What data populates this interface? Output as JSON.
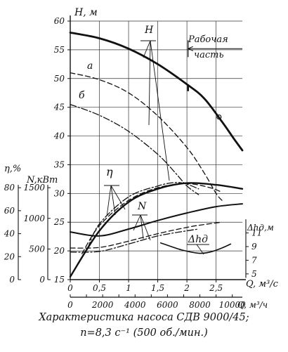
{
  "chart_data": {
    "type": "line",
    "caption_line1": "Характеристика насоса СДВ 9000/45;",
    "caption_line2": "n=8,3 с⁻¹ (500 об./мин.)",
    "x_axis": {
      "label": "Q, м³/с",
      "range": [
        0,
        2.95
      ],
      "ticks": [
        "0",
        "0,5",
        "1",
        "1,5",
        "2",
        "2,5"
      ]
    },
    "x2_axis": {
      "label": "Q, м³/ч",
      "range": [
        0,
        10620
      ],
      "ticks": [
        "0",
        "2000",
        "4000",
        "6000",
        "8000",
        "10000"
      ]
    },
    "y_axis": {
      "label": "H, м",
      "range": [
        15,
        60
      ],
      "ticks": [
        "15",
        "20",
        "25",
        "30",
        "35",
        "40",
        "45",
        "50",
        "55",
        "60"
      ]
    },
    "eta_axis": {
      "label": "η,%",
      "range": [
        0,
        80
      ],
      "ticks": [
        "0",
        "20",
        "40",
        "60",
        "80"
      ]
    },
    "power_axis": {
      "label": "N,кВт",
      "range": [
        0,
        1500
      ],
      "ticks": [
        "0",
        "500",
        "1000",
        "1500"
      ]
    },
    "dh_axis": {
      "label": "Δhд,м",
      "range": [
        5,
        13
      ],
      "ticks": [
        "5",
        "7",
        "9",
        "11"
      ]
    },
    "annotations": {
      "H": "H",
      "a": "а",
      "b": "б",
      "eta": "η",
      "N": "N",
      "dh": "Δhд",
      "working_zone_line1": "Рабочая",
      "working_zone_line2": "часть"
    },
    "working_zone": [
      2.02,
      2.95
    ],
    "series": [
      {
        "name": "H",
        "style": "solid",
        "x": [
          0,
          0.5,
          1.0,
          1.5,
          2.0,
          2.3,
          2.6,
          2.8,
          2.95
        ],
        "y": [
          58,
          57,
          55.2,
          52.5,
          49,
          46.5,
          42.5,
          39.6,
          37.5
        ]
      },
      {
        "name": "а",
        "style": "dashed",
        "x": [
          0,
          0.5,
          1.0,
          1.5,
          2.0,
          2.3,
          2.5,
          2.6
        ],
        "y": [
          51,
          49.8,
          47.5,
          43.5,
          38,
          33.5,
          30,
          28.8
        ]
      },
      {
        "name": "б",
        "style": "dashdot",
        "x": [
          0,
          0.5,
          1.0,
          1.5,
          1.8,
          2.0,
          2.2
        ],
        "y": [
          45.5,
          43.6,
          40.8,
          36.8,
          33.6,
          31.3,
          29.8
        ]
      },
      {
        "name": "H-Q (η)",
        "style": "solid",
        "x": [
          0,
          0.5,
          1.0,
          1.5,
          2.0,
          2.5,
          2.95
        ],
        "y": [
          15.5,
          23.5,
          28.5,
          30.8,
          31.8,
          31.5,
          30.8
        ]
      },
      {
        "name": "η (а)",
        "style": "dashed",
        "x": [
          0.2,
          0.5,
          1.0,
          1.5,
          2.0,
          2.4,
          2.6
        ],
        "y": [
          19.5,
          24.4,
          28.8,
          31,
          31.7,
          31,
          30.2
        ]
      },
      {
        "name": "η (б)",
        "style": "dashdot",
        "x": [
          0.3,
          0.5,
          1.0,
          1.5,
          1.8,
          2.0,
          2.2
        ],
        "y": [
          20.5,
          24.7,
          29.4,
          31.3,
          31.9,
          31.6,
          30.8
        ]
      },
      {
        "name": "N",
        "style": "solid",
        "x": [
          0,
          0.5,
          1.0,
          1.5,
          2.0,
          2.5,
          2.95
        ],
        "y": [
          23.3,
          22.6,
          23.8,
          25.3,
          26.6,
          27.7,
          28.2
        ]
      },
      {
        "name": "N (а)",
        "style": "dashed",
        "x": [
          0,
          0.5,
          1.0,
          1.5,
          2.0,
          2.3,
          2.6
        ],
        "y": [
          20.5,
          20.6,
          21.7,
          23,
          24.1,
          24.6,
          25
        ]
      },
      {
        "name": "N (б)",
        "style": "dashdot",
        "x": [
          0,
          0.5,
          1.0,
          1.5,
          2.0,
          2.2
        ],
        "y": [
          19.8,
          19.9,
          21.2,
          22.6,
          23.5,
          23.8
        ]
      },
      {
        "name": "Δhд",
        "style": "solid",
        "x": [
          1.55,
          1.9,
          2.2,
          2.4,
          2.6,
          2.75
        ],
        "y": [
          21.4,
          20.2,
          19.6,
          19.8,
          20.5,
          21.2
        ]
      }
    ]
  }
}
